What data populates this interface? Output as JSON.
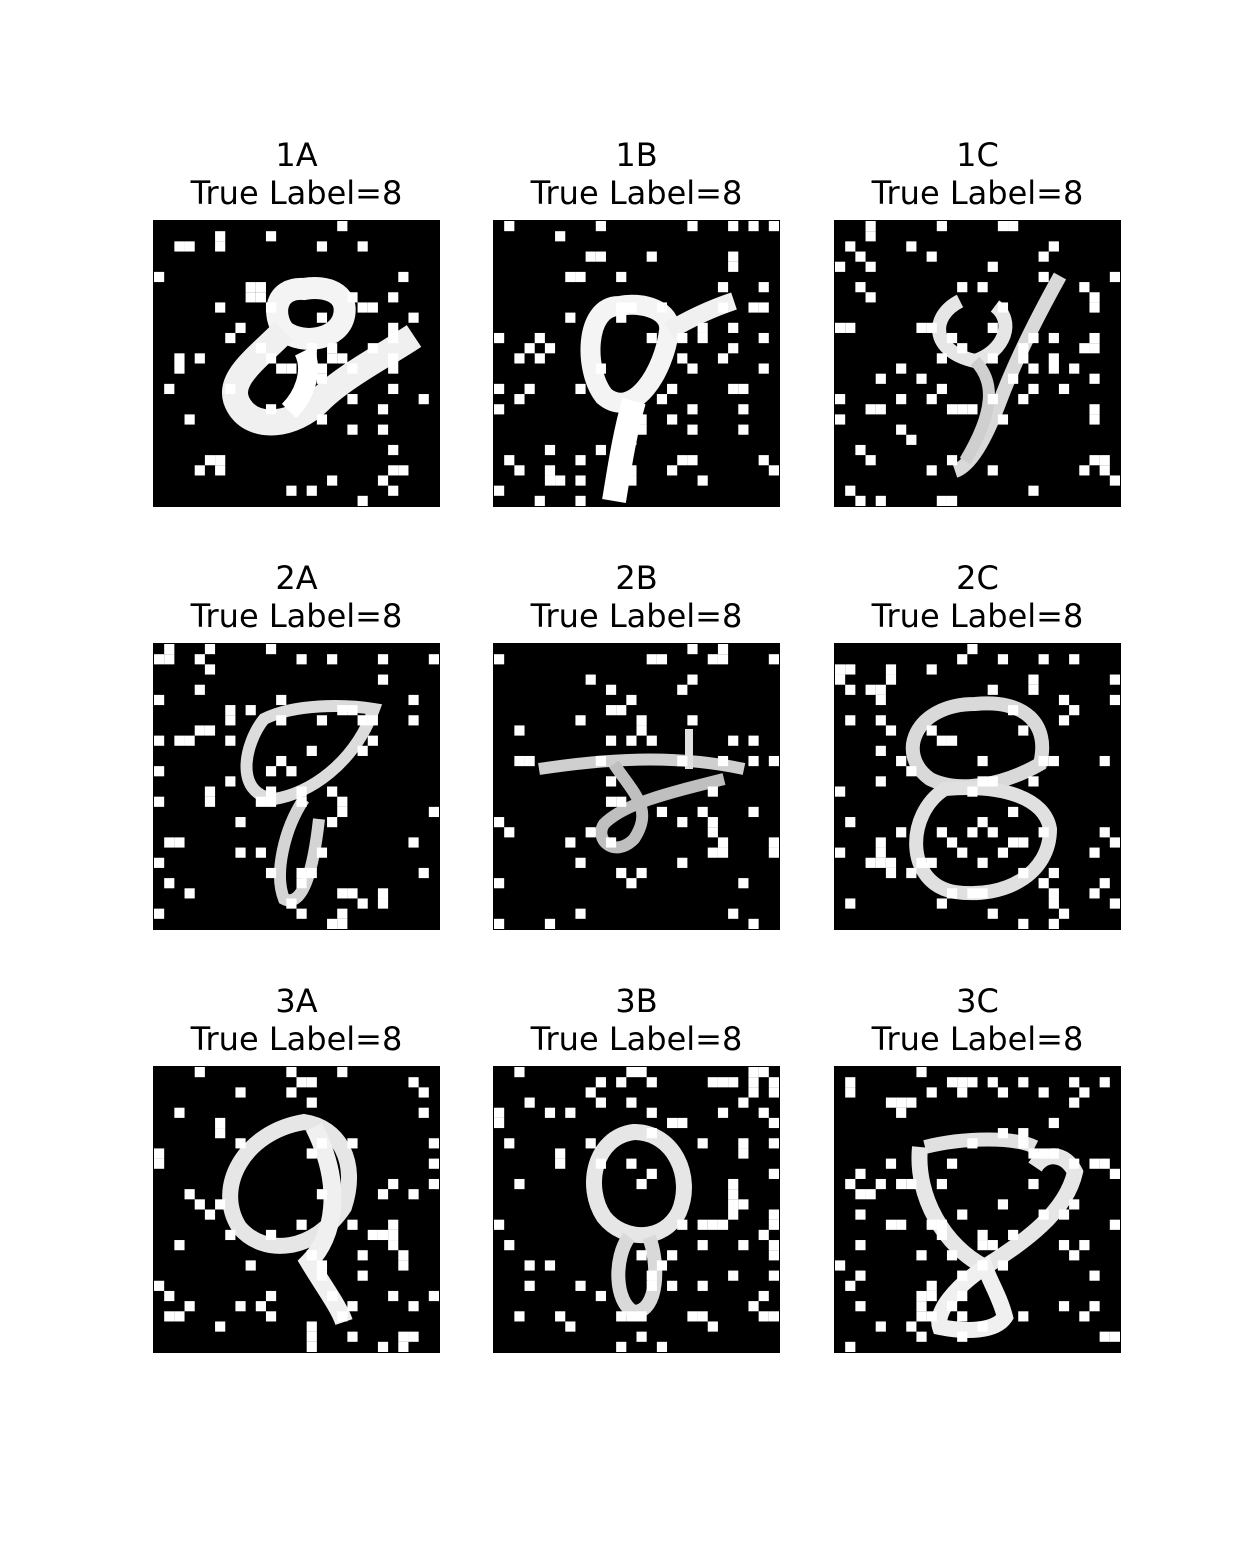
{
  "figure": {
    "panels": [
      {
        "id": "1A",
        "label_text": "True Label=8",
        "true_label": 8
      },
      {
        "id": "1B",
        "label_text": "True Label=8",
        "true_label": 8
      },
      {
        "id": "1C",
        "label_text": "True Label=8",
        "true_label": 8
      },
      {
        "id": "2A",
        "label_text": "True Label=8",
        "true_label": 8
      },
      {
        "id": "2B",
        "label_text": "True Label=8",
        "true_label": 8
      },
      {
        "id": "2C",
        "label_text": "True Label=8",
        "true_label": 8
      },
      {
        "id": "3A",
        "label_text": "True Label=8",
        "true_label": 8
      },
      {
        "id": "3B",
        "label_text": "True Label=8",
        "true_label": 8
      },
      {
        "id": "3C",
        "label_text": "True Label=8",
        "true_label": 8
      }
    ]
  },
  "colors": {
    "background": "#ffffff",
    "image_background": "#000000",
    "pixel": "#ffffff",
    "text": "#000000"
  }
}
